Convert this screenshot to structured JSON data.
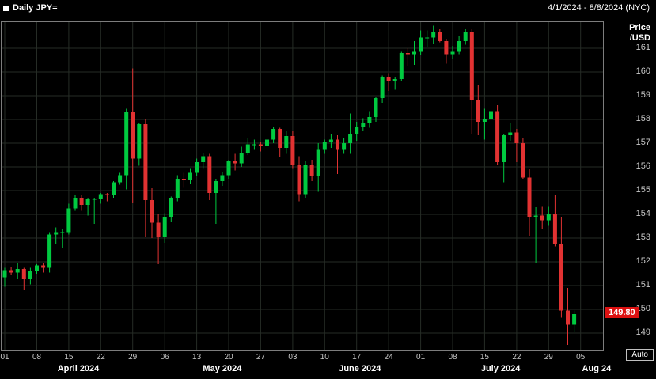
{
  "header": {
    "title": "Daily JPY=",
    "date_range": "4/1/2024 - 8/8/2024 (NYC)"
  },
  "y_axis": {
    "title_line1": "Price",
    "title_line2": "/USD",
    "ticks": [
      161,
      160,
      159,
      158,
      157,
      156,
      155,
      154,
      153,
      152,
      151,
      150,
      149
    ],
    "last_price": "149.80"
  },
  "x_axis": {
    "day_labels": [
      {
        "label": "01",
        "index": 0
      },
      {
        "label": "08",
        "index": 5
      },
      {
        "label": "15",
        "index": 10
      },
      {
        "label": "22",
        "index": 15
      },
      {
        "label": "29",
        "index": 20
      },
      {
        "label": "06",
        "index": 25
      },
      {
        "label": "13",
        "index": 30
      },
      {
        "label": "20",
        "index": 35
      },
      {
        "label": "27",
        "index": 40
      },
      {
        "label": "03",
        "index": 45
      },
      {
        "label": "10",
        "index": 50
      },
      {
        "label": "17",
        "index": 55
      },
      {
        "label": "24",
        "index": 60
      },
      {
        "label": "01",
        "index": 65
      },
      {
        "label": "08",
        "index": 70
      },
      {
        "label": "15",
        "index": 75
      },
      {
        "label": "22",
        "index": 80
      },
      {
        "label": "29",
        "index": 85
      },
      {
        "label": "05",
        "index": 90
      }
    ],
    "month_labels": [
      {
        "label": "April 2024",
        "index": 11.5
      },
      {
        "label": "May 2024",
        "index": 34
      },
      {
        "label": "June 2024",
        "index": 55.5
      },
      {
        "label": "July 2024",
        "index": 77.5
      },
      {
        "label": "Aug 24",
        "index": 92.5
      }
    ]
  },
  "auto_button": "Auto",
  "colors": {
    "up": "#00ca40",
    "down": "#e23232",
    "badge_bg": "#dd1111",
    "grid": "#262c26",
    "frame": "#7d7d7d",
    "background": "#000000"
  },
  "chart_data": {
    "type": "candlestick",
    "symbol": "JPY=",
    "interval": "Daily",
    "timezone": "NYC",
    "title": "Daily JPY=",
    "date_range": "4/1/2024 - 8/8/2024",
    "last_price": 149.8,
    "price_axis": {
      "min": 148.3,
      "max": 162.1,
      "tick_step": 1,
      "unit": "Price/USD"
    },
    "total_slots": 94,
    "columns": [
      "date",
      "open",
      "high",
      "low",
      "close"
    ],
    "candles": [
      [
        "2024-04-01",
        151.35,
        151.75,
        150.95,
        151.65
      ],
      [
        "2024-04-02",
        151.65,
        151.8,
        151.45,
        151.55
      ],
      [
        "2024-04-03",
        151.55,
        151.95,
        151.3,
        151.7
      ],
      [
        "2024-04-04",
        151.7,
        151.75,
        150.8,
        151.3
      ],
      [
        "2024-04-05",
        151.3,
        151.75,
        151.05,
        151.6
      ],
      [
        "2024-04-08",
        151.6,
        151.9,
        151.5,
        151.85
      ],
      [
        "2024-04-09",
        151.85,
        151.95,
        151.55,
        151.75
      ],
      [
        "2024-04-10",
        151.75,
        153.25,
        151.55,
        153.15
      ],
      [
        "2024-04-11",
        153.15,
        153.45,
        152.75,
        153.25
      ],
      [
        "2024-04-12",
        153.25,
        153.4,
        152.6,
        153.25
      ],
      [
        "2024-04-15",
        153.25,
        154.45,
        153.15,
        154.25
      ],
      [
        "2024-04-16",
        154.25,
        154.8,
        154.15,
        154.7
      ],
      [
        "2024-04-17",
        154.7,
        154.8,
        154.15,
        154.4
      ],
      [
        "2024-04-18",
        154.4,
        154.7,
        153.95,
        154.65
      ],
      [
        "2024-04-19",
        154.65,
        154.7,
        153.6,
        154.65
      ],
      [
        "2024-04-22",
        154.65,
        154.9,
        154.45,
        154.85
      ],
      [
        "2024-04-23",
        154.85,
        154.9,
        154.55,
        154.8
      ],
      [
        "2024-04-24",
        154.8,
        155.4,
        154.7,
        155.35
      ],
      [
        "2024-04-25",
        155.35,
        155.75,
        155.25,
        155.65
      ],
      [
        "2024-04-26",
        155.65,
        158.45,
        155.05,
        158.3
      ],
      [
        "2024-04-29",
        158.3,
        160.15,
        154.5,
        156.35
      ],
      [
        "2024-04-30",
        156.35,
        157.85,
        156.05,
        157.8
      ],
      [
        "2024-05-01",
        157.8,
        158.0,
        153.05,
        154.6
      ],
      [
        "2024-05-02",
        154.6,
        155.1,
        153.0,
        153.65
      ],
      [
        "2024-05-03",
        153.65,
        154.0,
        151.9,
        153.05
      ],
      [
        "2024-05-06",
        153.05,
        154.05,
        152.8,
        153.9
      ],
      [
        "2024-05-07",
        153.9,
        154.75,
        153.7,
        154.7
      ],
      [
        "2024-05-08",
        154.7,
        155.65,
        154.55,
        155.5
      ],
      [
        "2024-05-09",
        155.5,
        155.75,
        155.15,
        155.45
      ],
      [
        "2024-05-10",
        155.45,
        155.95,
        155.3,
        155.75
      ],
      [
        "2024-05-13",
        155.75,
        156.35,
        155.6,
        156.2
      ],
      [
        "2024-05-14",
        156.2,
        156.6,
        155.95,
        156.45
      ],
      [
        "2024-05-15",
        156.45,
        156.55,
        154.6,
        154.9
      ],
      [
        "2024-05-16",
        154.9,
        155.5,
        153.6,
        155.4
      ],
      [
        "2024-05-17",
        155.4,
        155.8,
        155.2,
        155.65
      ],
      [
        "2024-05-20",
        155.65,
        156.3,
        155.5,
        156.25
      ],
      [
        "2024-05-21",
        156.25,
        156.55,
        155.85,
        156.15
      ],
      [
        "2024-05-22",
        156.15,
        156.85,
        156.0,
        156.6
      ],
      [
        "2024-05-23",
        156.6,
        157.2,
        156.5,
        156.95
      ],
      [
        "2024-05-24",
        156.95,
        157.15,
        156.75,
        156.95
      ],
      [
        "2024-05-27",
        156.95,
        157.05,
        156.65,
        156.9
      ],
      [
        "2024-05-28",
        156.9,
        157.25,
        156.6,
        157.15
      ],
      [
        "2024-05-29",
        157.15,
        157.7,
        157.0,
        157.6
      ],
      [
        "2024-05-30",
        157.6,
        157.65,
        156.4,
        156.8
      ],
      [
        "2024-05-31",
        156.8,
        157.5,
        156.55,
        157.3
      ],
      [
        "2024-06-03",
        157.3,
        157.5,
        155.95,
        156.1
      ],
      [
        "2024-06-04",
        156.1,
        156.45,
        154.55,
        154.85
      ],
      [
        "2024-06-05",
        154.85,
        156.25,
        154.7,
        156.1
      ],
      [
        "2024-06-06",
        156.1,
        156.3,
        155.4,
        155.6
      ],
      [
        "2024-06-07",
        155.6,
        157.0,
        154.95,
        156.75
      ],
      [
        "2024-06-10",
        156.75,
        157.15,
        156.55,
        157.05
      ],
      [
        "2024-06-11",
        157.05,
        157.4,
        156.8,
        157.15
      ],
      [
        "2024-06-12",
        157.15,
        157.35,
        155.7,
        156.75
      ],
      [
        "2024-06-13",
        156.75,
        157.2,
        156.55,
        157.0
      ],
      [
        "2024-06-14",
        157.0,
        158.25,
        156.55,
        157.4
      ],
      [
        "2024-06-17",
        157.4,
        157.9,
        157.1,
        157.7
      ],
      [
        "2024-06-18",
        157.7,
        158.05,
        157.5,
        157.85
      ],
      [
        "2024-06-19",
        157.85,
        158.35,
        157.65,
        158.1
      ],
      [
        "2024-06-20",
        158.1,
        158.95,
        157.9,
        158.9
      ],
      [
        "2024-06-21",
        158.9,
        159.85,
        158.7,
        159.8
      ],
      [
        "2024-06-24",
        159.8,
        159.95,
        159.2,
        159.6
      ],
      [
        "2024-06-25",
        159.6,
        159.8,
        159.25,
        159.7
      ],
      [
        "2024-06-26",
        159.7,
        160.85,
        159.6,
        160.8
      ],
      [
        "2024-06-27",
        160.8,
        161.0,
        160.25,
        160.75
      ],
      [
        "2024-06-28",
        160.75,
        161.3,
        160.3,
        160.85
      ],
      [
        "2024-07-01",
        160.85,
        161.75,
        160.7,
        161.45
      ],
      [
        "2024-07-02",
        161.45,
        161.75,
        161.05,
        161.45
      ],
      [
        "2024-07-03",
        161.45,
        161.95,
        161.2,
        161.7
      ],
      [
        "2024-07-04",
        161.7,
        161.8,
        161.25,
        161.3
      ],
      [
        "2024-07-05",
        161.3,
        161.4,
        160.35,
        160.75
      ],
      [
        "2024-07-08",
        160.75,
        161.1,
        160.55,
        160.85
      ],
      [
        "2024-07-09",
        160.85,
        161.5,
        160.75,
        161.3
      ],
      [
        "2024-07-10",
        161.3,
        161.8,
        161.15,
        161.7
      ],
      [
        "2024-07-11",
        161.7,
        161.8,
        157.4,
        158.8
      ],
      [
        "2024-07-12",
        158.8,
        159.45,
        157.35,
        157.9
      ],
      [
        "2024-07-15",
        157.9,
        158.45,
        157.15,
        158.0
      ],
      [
        "2024-07-16",
        158.0,
        158.85,
        157.95,
        158.35
      ],
      [
        "2024-07-17",
        158.35,
        158.6,
        156.1,
        156.2
      ],
      [
        "2024-07-18",
        156.2,
        157.4,
        155.35,
        157.35
      ],
      [
        "2024-07-19",
        157.35,
        157.85,
        157.1,
        157.45
      ],
      [
        "2024-07-22",
        157.45,
        157.6,
        156.2,
        157.0
      ],
      [
        "2024-07-23",
        157.0,
        157.2,
        155.5,
        155.55
      ],
      [
        "2024-07-24",
        155.55,
        155.9,
        153.1,
        153.9
      ],
      [
        "2024-07-25",
        153.9,
        154.3,
        151.95,
        153.95
      ],
      [
        "2024-07-26",
        153.95,
        154.35,
        153.4,
        153.75
      ],
      [
        "2024-07-29",
        153.75,
        154.35,
        153.55,
        154.0
      ],
      [
        "2024-07-30",
        154.0,
        154.8,
        152.65,
        152.75
      ],
      [
        "2024-07-31",
        152.75,
        153.9,
        149.65,
        149.95
      ],
      [
        "2024-08-01",
        149.95,
        150.9,
        148.5,
        149.35
      ],
      [
        "2024-08-02",
        149.35,
        149.95,
        149.05,
        149.8
      ]
    ]
  }
}
